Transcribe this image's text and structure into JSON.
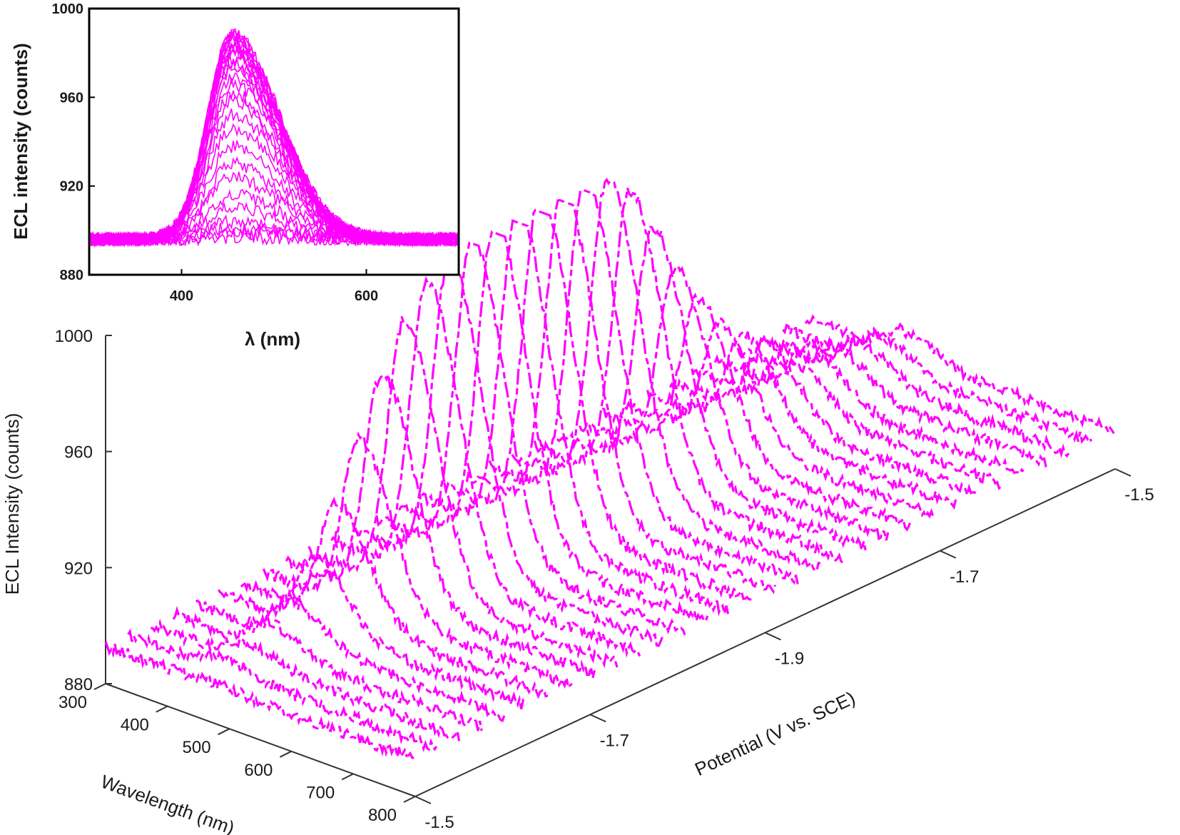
{
  "chart_data": [
    {
      "id": "inset",
      "type": "line",
      "xlabel": "λ (nm)",
      "ylabel": "ECL intensity (counts)",
      "xlim": [
        300,
        700
      ],
      "ylim": [
        880,
        1000
      ],
      "x_ticks": [
        "400",
        "600"
      ],
      "y_ticks": [
        "880",
        "920",
        "960",
        "1000"
      ],
      "color": "#ff00ff",
      "peak_wavelength": 455,
      "baseline": 896,
      "series_peak_heights": [
        1,
        3,
        5,
        8,
        14,
        20,
        28,
        34,
        42,
        50,
        56,
        62,
        66,
        70,
        73,
        76,
        78,
        80,
        82,
        84,
        85,
        86,
        87,
        88,
        89,
        90,
        91,
        92,
        92,
        93
      ]
    },
    {
      "id": "main-3d",
      "type": "line",
      "xlabel": "Wavelength (nm)",
      "ylabel": "ECL Intensity (counts)",
      "zlabel": "Potential (V vs. SCE)",
      "wavelength_ticks": [
        "300",
        "400",
        "500",
        "600",
        "700",
        "800"
      ],
      "intensity_ticks": [
        "880",
        "920",
        "960",
        "1000"
      ],
      "potential_ticks": [
        "-1.5",
        "-1.7",
        "-1.9",
        "-1.7",
        "-1.5"
      ],
      "xlim": [
        300,
        800
      ],
      "ylim": [
        880,
        1000
      ],
      "color": "#ff00ff",
      "peak_wavelength": 455,
      "baseline": 893,
      "series_peak_heights": [
        1,
        4,
        6,
        9,
        13,
        25,
        40,
        58,
        77,
        92,
        101,
        106,
        109,
        111,
        112,
        113,
        112,
        111,
        108,
        100,
        84,
        66,
        52,
        40,
        32,
        26,
        21,
        17,
        14,
        12,
        10,
        8
      ]
    }
  ]
}
